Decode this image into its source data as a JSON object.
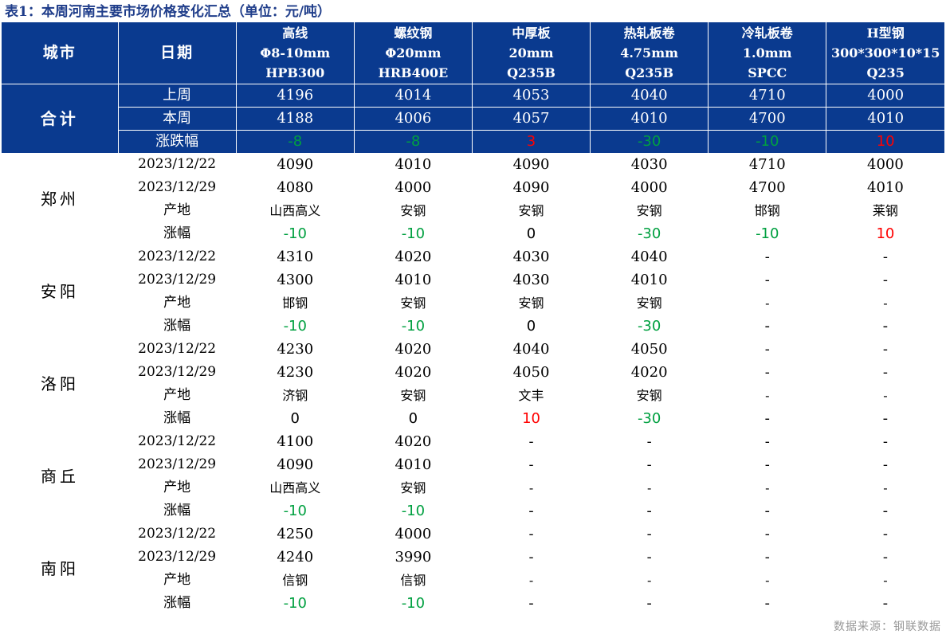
{
  "title": "表1：本周河南主要市场价格变化汇总（单位：元/吨）",
  "header": {
    "city": "城市",
    "date": "日期",
    "products": [
      {
        "l1": "高线",
        "l2": "Φ8-10mm",
        "l3": "HPB300"
      },
      {
        "l1": "螺纹钢",
        "l2": "Φ20mm",
        "l3": "HRB400E"
      },
      {
        "l1": "中厚板",
        "l2": "20mm",
        "l3": "Q235B"
      },
      {
        "l1": "热轧板卷",
        "l2": "4.75mm",
        "l3": "Q235B"
      },
      {
        "l1": "冷轧板卷",
        "l2": "1.0mm",
        "l3": "SPCC"
      },
      {
        "l1": "H型钢",
        "l2": "300*300*10*15",
        "l3": "Q235"
      }
    ]
  },
  "summary": {
    "city": "合计",
    "rows": [
      {
        "label": "上周",
        "values": [
          "4196",
          "4014",
          "4053",
          "4040",
          "4710",
          "4000"
        ]
      },
      {
        "label": "本周",
        "values": [
          "4188",
          "4006",
          "4057",
          "4010",
          "4700",
          "4010"
        ]
      },
      {
        "label": "涨跌幅",
        "values": [
          "-8",
          "-8",
          "3",
          "-30",
          "-10",
          "10"
        ]
      }
    ]
  },
  "cities": [
    {
      "name": "郑州",
      "rows": [
        {
          "label": "2023/12/22",
          "values": [
            "4090",
            "4010",
            "4090",
            "4030",
            "4710",
            "4000"
          ]
        },
        {
          "label": "2023/12/29",
          "values": [
            "4080",
            "4000",
            "4090",
            "4000",
            "4700",
            "4010"
          ]
        },
        {
          "label": "产地",
          "values": [
            "山西高义",
            "安钢",
            "安钢",
            "安钢",
            "邯钢",
            "莱钢"
          ]
        },
        {
          "label": "涨幅",
          "values": [
            "-10",
            "-10",
            "0",
            "-30",
            "-10",
            "10"
          ]
        }
      ]
    },
    {
      "name": "安阳",
      "rows": [
        {
          "label": "2023/12/22",
          "values": [
            "4310",
            "4020",
            "4030",
            "4040",
            "-",
            "-"
          ]
        },
        {
          "label": "2023/12/29",
          "values": [
            "4300",
            "4010",
            "4030",
            "4010",
            "-",
            "-"
          ]
        },
        {
          "label": "产地",
          "values": [
            "邯钢",
            "安钢",
            "安钢",
            "安钢",
            "-",
            "-"
          ]
        },
        {
          "label": "涨幅",
          "values": [
            "-10",
            "-10",
            "0",
            "-30",
            "-",
            "-"
          ]
        }
      ]
    },
    {
      "name": "洛阳",
      "rows": [
        {
          "label": "2023/12/22",
          "values": [
            "4230",
            "4020",
            "4040",
            "4050",
            "-",
            "-"
          ]
        },
        {
          "label": "2023/12/29",
          "values": [
            "4230",
            "4020",
            "4050",
            "4020",
            "-",
            "-"
          ]
        },
        {
          "label": "产地",
          "values": [
            "济钢",
            "安钢",
            "文丰",
            "安钢",
            "-",
            "-"
          ]
        },
        {
          "label": "涨幅",
          "values": [
            "0",
            "0",
            "10",
            "-30",
            "-",
            "-"
          ]
        }
      ]
    },
    {
      "name": "商丘",
      "rows": [
        {
          "label": "2023/12/22",
          "values": [
            "4100",
            "4020",
            "-",
            "-",
            "-",
            "-"
          ]
        },
        {
          "label": "2023/12/29",
          "values": [
            "4090",
            "4010",
            "-",
            "-",
            "-",
            "-"
          ]
        },
        {
          "label": "产地",
          "values": [
            "山西高义",
            "安钢",
            "-",
            "-",
            "-",
            "-"
          ]
        },
        {
          "label": "涨幅",
          "values": [
            "-10",
            "-10",
            "-",
            "-",
            "-",
            "-"
          ]
        }
      ]
    },
    {
      "name": "南阳",
      "rows": [
        {
          "label": "2023/12/22",
          "values": [
            "4250",
            "4000",
            "-",
            "-",
            "-",
            "-"
          ]
        },
        {
          "label": "2023/12/29",
          "values": [
            "4240",
            "3990",
            "-",
            "-",
            "-",
            "-"
          ]
        },
        {
          "label": "产地",
          "values": [
            "信钢",
            "信钢",
            "-",
            "-",
            "-",
            "-"
          ]
        },
        {
          "label": "涨幅",
          "values": [
            "-10",
            "-10",
            "-",
            "-",
            "-",
            "-"
          ]
        }
      ]
    }
  ],
  "source": "数据来源：钢联数据",
  "colors": {
    "header_bg": "#0a3a8f",
    "title": "#1f3d8a",
    "up": "#ff0000",
    "down": "#00a040",
    "source": "#999999"
  }
}
